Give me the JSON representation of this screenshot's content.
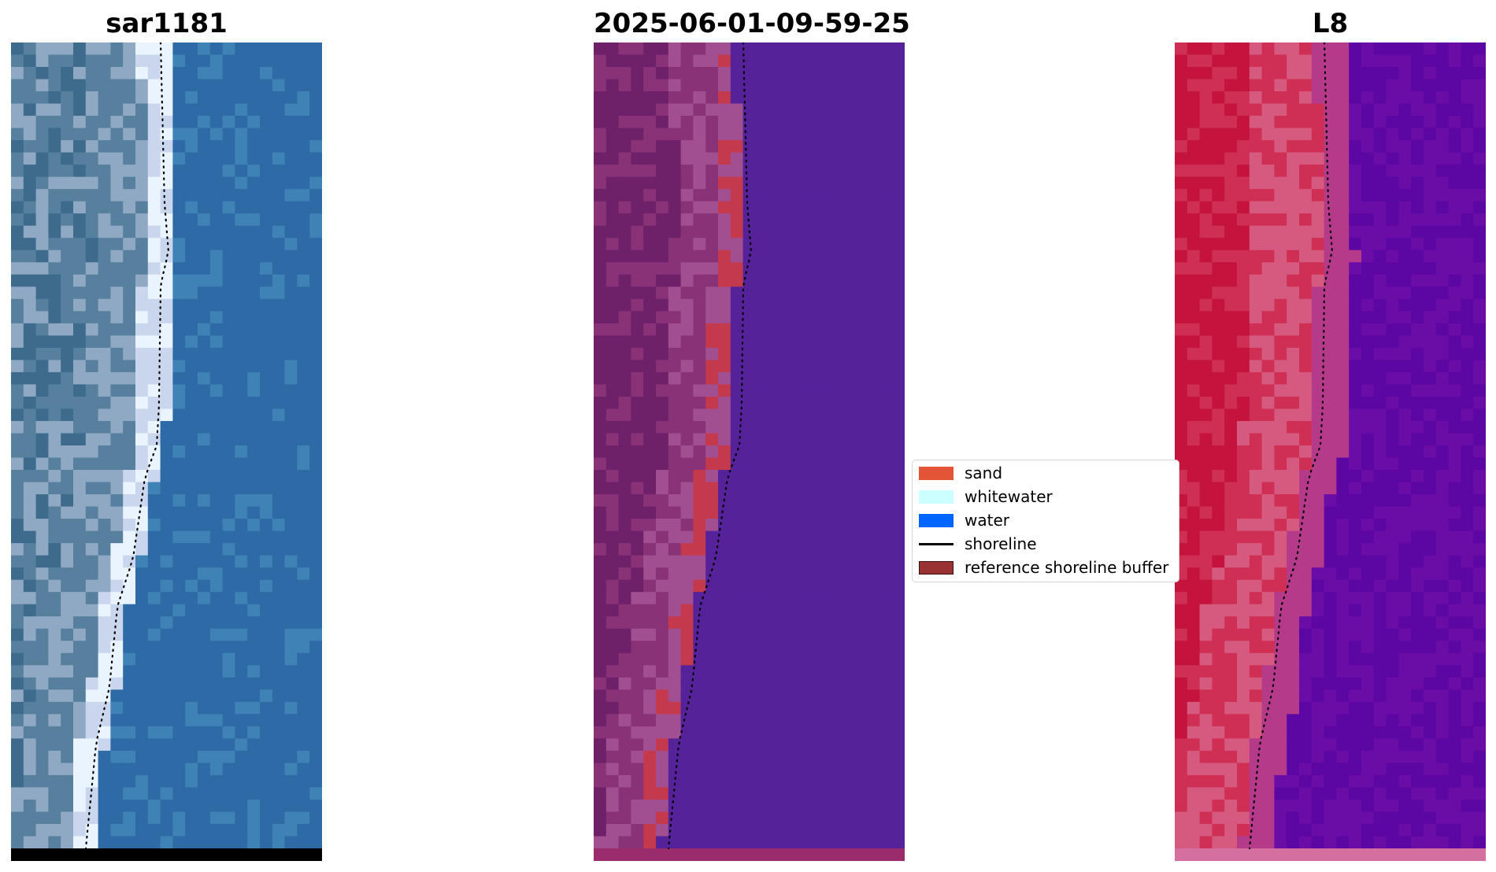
{
  "panels": [
    {
      "title": "sar1181",
      "kind": "rgb",
      "colors": {
        "land_dark": "#3e6a8c",
        "land_mid": "#56809e",
        "land_light": "#8fa8c4",
        "sand": "#c9d6ee",
        "whitewater": "#e9f4ff",
        "water": "#2d6aa6",
        "water_light": "#3f82b6",
        "bottom_bar": "#000000"
      }
    },
    {
      "title": "2025-06-01-09-59-25",
      "kind": "classified",
      "colors": {
        "land_dark": "#6e2068",
        "land_mid": "#8a3278",
        "land_light": "#a24f92",
        "sand": "#c43a4c",
        "water": "#55229a",
        "bottom_bar": "#9b2c6c"
      }
    },
    {
      "title": "L8",
      "kind": "index",
      "colors": {
        "land_dark": "#c4133c",
        "land_mid": "#cf2f54",
        "land_light": "#d65a80",
        "transition": "#b53a8a",
        "water": "#6a0ca6",
        "water_dark": "#5c06a4",
        "bottom_bar": "#d46fa0"
      }
    }
  ],
  "legend": {
    "items": [
      {
        "label": "sand",
        "color": "#e35336",
        "kind": "patch"
      },
      {
        "label": "whitewater",
        "color": "#ccffff",
        "kind": "patch"
      },
      {
        "label": "water",
        "color": "#0064ff",
        "kind": "patch"
      },
      {
        "label": "shoreline",
        "color": "#000000",
        "kind": "line"
      },
      {
        "label": "reference shoreline buffer",
        "color": "#993333",
        "kind": "patch"
      }
    ]
  },
  "shoreline_color": "#000000"
}
